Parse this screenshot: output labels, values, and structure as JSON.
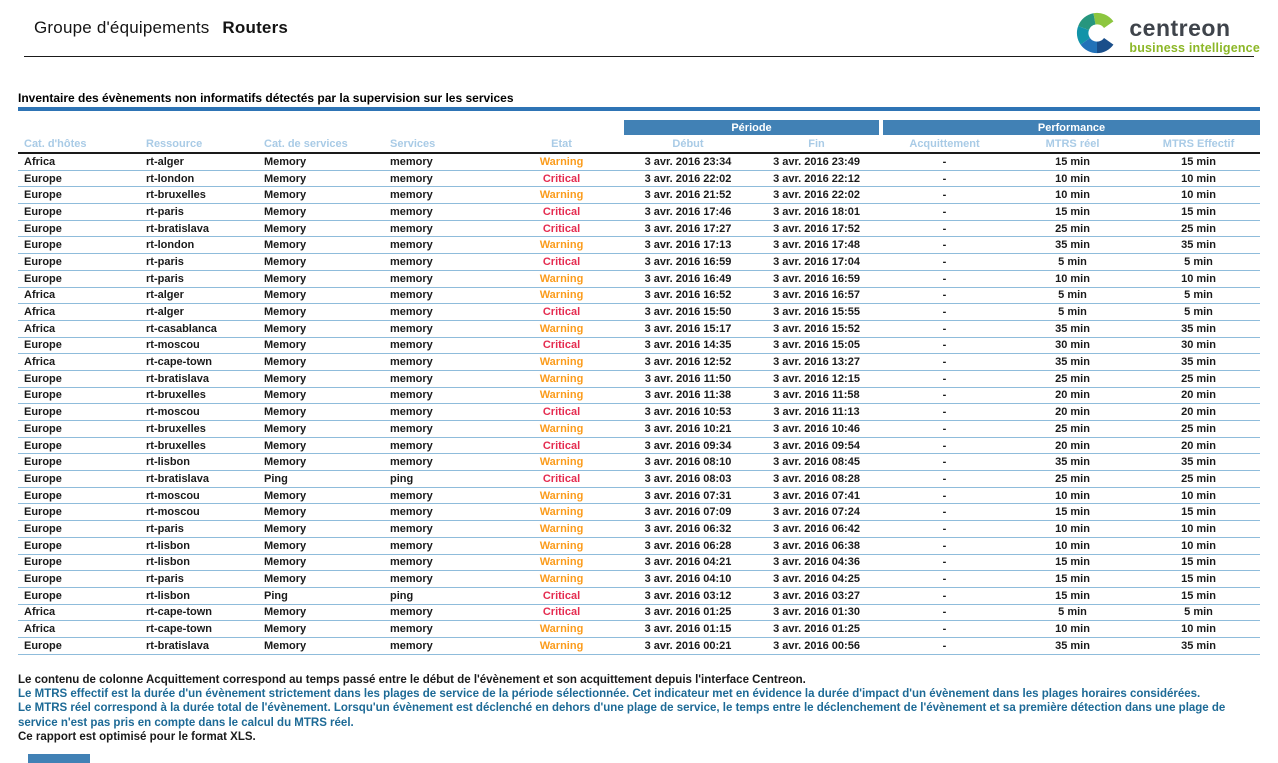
{
  "header": {
    "group_label": "Groupe d'équipements",
    "group_value": "Routers"
  },
  "logo": {
    "brand": "centreon",
    "tagline": "business intelligence"
  },
  "report": {
    "title": "Inventaire des évènements non informatifs détectés par la supervision sur les services"
  },
  "table": {
    "groups": [
      {
        "label": "Période"
      },
      {
        "label": "Performance"
      }
    ],
    "columns": [
      {
        "key": "host_cat",
        "label": "Cat. d'hôtes",
        "align": "left"
      },
      {
        "key": "resource",
        "label": "Ressource",
        "align": "left"
      },
      {
        "key": "service_cat",
        "label": "Cat. de services",
        "align": "left"
      },
      {
        "key": "service",
        "label": "Services",
        "align": "left"
      },
      {
        "key": "state",
        "label": "Etat",
        "align": "center"
      },
      {
        "key": "start",
        "label": "Début",
        "align": "center"
      },
      {
        "key": "end",
        "label": "Fin",
        "align": "center"
      },
      {
        "key": "ack",
        "label": "Acquittement",
        "align": "center"
      },
      {
        "key": "mtrs_real",
        "label": "MTRS réel",
        "align": "center"
      },
      {
        "key": "mtrs_eff",
        "label": "MTRS Effectif",
        "align": "center"
      }
    ],
    "rows": [
      {
        "host_cat": "Africa",
        "resource": "rt-alger",
        "service_cat": "Memory",
        "service": "memory",
        "state": "Warning",
        "start": "3 avr. 2016 23:34",
        "end": "3 avr. 2016 23:49",
        "ack": "-",
        "mtrs_real": "15 min",
        "mtrs_eff": "15 min"
      },
      {
        "host_cat": "Europe",
        "resource": "rt-london",
        "service_cat": "Memory",
        "service": "memory",
        "state": "Critical",
        "start": "3 avr. 2016 22:02",
        "end": "3 avr. 2016 22:12",
        "ack": "-",
        "mtrs_real": "10 min",
        "mtrs_eff": "10 min"
      },
      {
        "host_cat": "Europe",
        "resource": "rt-bruxelles",
        "service_cat": "Memory",
        "service": "memory",
        "state": "Warning",
        "start": "3 avr. 2016 21:52",
        "end": "3 avr. 2016 22:02",
        "ack": "-",
        "mtrs_real": "10 min",
        "mtrs_eff": "10 min"
      },
      {
        "host_cat": "Europe",
        "resource": "rt-paris",
        "service_cat": "Memory",
        "service": "memory",
        "state": "Critical",
        "start": "3 avr. 2016 17:46",
        "end": "3 avr. 2016 18:01",
        "ack": "-",
        "mtrs_real": "15 min",
        "mtrs_eff": "15 min"
      },
      {
        "host_cat": "Europe",
        "resource": "rt-bratislava",
        "service_cat": "Memory",
        "service": "memory",
        "state": "Critical",
        "start": "3 avr. 2016 17:27",
        "end": "3 avr. 2016 17:52",
        "ack": "-",
        "mtrs_real": "25 min",
        "mtrs_eff": "25 min"
      },
      {
        "host_cat": "Europe",
        "resource": "rt-london",
        "service_cat": "Memory",
        "service": "memory",
        "state": "Warning",
        "start": "3 avr. 2016 17:13",
        "end": "3 avr. 2016 17:48",
        "ack": "-",
        "mtrs_real": "35 min",
        "mtrs_eff": "35 min"
      },
      {
        "host_cat": "Europe",
        "resource": "rt-paris",
        "service_cat": "Memory",
        "service": "memory",
        "state": "Critical",
        "start": "3 avr. 2016 16:59",
        "end": "3 avr. 2016 17:04",
        "ack": "-",
        "mtrs_real": "5 min",
        "mtrs_eff": "5 min"
      },
      {
        "host_cat": "Europe",
        "resource": "rt-paris",
        "service_cat": "Memory",
        "service": "memory",
        "state": "Warning",
        "start": "3 avr. 2016 16:49",
        "end": "3 avr. 2016 16:59",
        "ack": "-",
        "mtrs_real": "10 min",
        "mtrs_eff": "10 min"
      },
      {
        "host_cat": "Africa",
        "resource": "rt-alger",
        "service_cat": "Memory",
        "service": "memory",
        "state": "Warning",
        "start": "3 avr. 2016 16:52",
        "end": "3 avr. 2016 16:57",
        "ack": "-",
        "mtrs_real": "5 min",
        "mtrs_eff": "5 min"
      },
      {
        "host_cat": "Africa",
        "resource": "rt-alger",
        "service_cat": "Memory",
        "service": "memory",
        "state": "Critical",
        "start": "3 avr. 2016 15:50",
        "end": "3 avr. 2016 15:55",
        "ack": "-",
        "mtrs_real": "5 min",
        "mtrs_eff": "5 min"
      },
      {
        "host_cat": "Africa",
        "resource": "rt-casablanca",
        "service_cat": "Memory",
        "service": "memory",
        "state": "Warning",
        "start": "3 avr. 2016 15:17",
        "end": "3 avr. 2016 15:52",
        "ack": "-",
        "mtrs_real": "35 min",
        "mtrs_eff": "35 min"
      },
      {
        "host_cat": "Europe",
        "resource": "rt-moscou",
        "service_cat": "Memory",
        "service": "memory",
        "state": "Critical",
        "start": "3 avr. 2016 14:35",
        "end": "3 avr. 2016 15:05",
        "ack": "-",
        "mtrs_real": "30 min",
        "mtrs_eff": "30 min"
      },
      {
        "host_cat": "Africa",
        "resource": "rt-cape-town",
        "service_cat": "Memory",
        "service": "memory",
        "state": "Warning",
        "start": "3 avr. 2016 12:52",
        "end": "3 avr. 2016 13:27",
        "ack": "-",
        "mtrs_real": "35 min",
        "mtrs_eff": "35 min"
      },
      {
        "host_cat": "Europe",
        "resource": "rt-bratislava",
        "service_cat": "Memory",
        "service": "memory",
        "state": "Warning",
        "start": "3 avr. 2016 11:50",
        "end": "3 avr. 2016 12:15",
        "ack": "-",
        "mtrs_real": "25 min",
        "mtrs_eff": "25 min"
      },
      {
        "host_cat": "Europe",
        "resource": "rt-bruxelles",
        "service_cat": "Memory",
        "service": "memory",
        "state": "Warning",
        "start": "3 avr. 2016 11:38",
        "end": "3 avr. 2016 11:58",
        "ack": "-",
        "mtrs_real": "20 min",
        "mtrs_eff": "20 min"
      },
      {
        "host_cat": "Europe",
        "resource": "rt-moscou",
        "service_cat": "Memory",
        "service": "memory",
        "state": "Critical",
        "start": "3 avr. 2016 10:53",
        "end": "3 avr. 2016 11:13",
        "ack": "-",
        "mtrs_real": "20 min",
        "mtrs_eff": "20 min"
      },
      {
        "host_cat": "Europe",
        "resource": "rt-bruxelles",
        "service_cat": "Memory",
        "service": "memory",
        "state": "Warning",
        "start": "3 avr. 2016 10:21",
        "end": "3 avr. 2016 10:46",
        "ack": "-",
        "mtrs_real": "25 min",
        "mtrs_eff": "25 min"
      },
      {
        "host_cat": "Europe",
        "resource": "rt-bruxelles",
        "service_cat": "Memory",
        "service": "memory",
        "state": "Critical",
        "start": "3 avr. 2016 09:34",
        "end": "3 avr. 2016 09:54",
        "ack": "-",
        "mtrs_real": "20 min",
        "mtrs_eff": "20 min"
      },
      {
        "host_cat": "Europe",
        "resource": "rt-lisbon",
        "service_cat": "Memory",
        "service": "memory",
        "state": "Warning",
        "start": "3 avr. 2016 08:10",
        "end": "3 avr. 2016 08:45",
        "ack": "-",
        "mtrs_real": "35 min",
        "mtrs_eff": "35 min"
      },
      {
        "host_cat": "Europe",
        "resource": "rt-bratislava",
        "service_cat": "Ping",
        "service": "ping",
        "state": "Critical",
        "start": "3 avr. 2016 08:03",
        "end": "3 avr. 2016 08:28",
        "ack": "-",
        "mtrs_real": "25 min",
        "mtrs_eff": "25 min"
      },
      {
        "host_cat": "Europe",
        "resource": "rt-moscou",
        "service_cat": "Memory",
        "service": "memory",
        "state": "Warning",
        "start": "3 avr. 2016 07:31",
        "end": "3 avr. 2016 07:41",
        "ack": "-",
        "mtrs_real": "10 min",
        "mtrs_eff": "10 min"
      },
      {
        "host_cat": "Europe",
        "resource": "rt-moscou",
        "service_cat": "Memory",
        "service": "memory",
        "state": "Warning",
        "start": "3 avr. 2016 07:09",
        "end": "3 avr. 2016 07:24",
        "ack": "-",
        "mtrs_real": "15 min",
        "mtrs_eff": "15 min"
      },
      {
        "host_cat": "Europe",
        "resource": "rt-paris",
        "service_cat": "Memory",
        "service": "memory",
        "state": "Warning",
        "start": "3 avr. 2016 06:32",
        "end": "3 avr. 2016 06:42",
        "ack": "-",
        "mtrs_real": "10 min",
        "mtrs_eff": "10 min"
      },
      {
        "host_cat": "Europe",
        "resource": "rt-lisbon",
        "service_cat": "Memory",
        "service": "memory",
        "state": "Warning",
        "start": "3 avr. 2016 06:28",
        "end": "3 avr. 2016 06:38",
        "ack": "-",
        "mtrs_real": "10 min",
        "mtrs_eff": "10 min"
      },
      {
        "host_cat": "Europe",
        "resource": "rt-lisbon",
        "service_cat": "Memory",
        "service": "memory",
        "state": "Warning",
        "start": "3 avr. 2016 04:21",
        "end": "3 avr. 2016 04:36",
        "ack": "-",
        "mtrs_real": "15 min",
        "mtrs_eff": "15 min"
      },
      {
        "host_cat": "Europe",
        "resource": "rt-paris",
        "service_cat": "Memory",
        "service": "memory",
        "state": "Warning",
        "start": "3 avr. 2016 04:10",
        "end": "3 avr. 2016 04:25",
        "ack": "-",
        "mtrs_real": "15 min",
        "mtrs_eff": "15 min"
      },
      {
        "host_cat": "Europe",
        "resource": "rt-lisbon",
        "service_cat": "Ping",
        "service": "ping",
        "state": "Critical",
        "start": "3 avr. 2016 03:12",
        "end": "3 avr. 2016 03:27",
        "ack": "-",
        "mtrs_real": "15 min",
        "mtrs_eff": "15 min"
      },
      {
        "host_cat": "Africa",
        "resource": "rt-cape-town",
        "service_cat": "Memory",
        "service": "memory",
        "state": "Critical",
        "start": "3 avr. 2016 01:25",
        "end": "3 avr. 2016 01:30",
        "ack": "-",
        "mtrs_real": "5 min",
        "mtrs_eff": "5 min"
      },
      {
        "host_cat": "Africa",
        "resource": "rt-cape-town",
        "service_cat": "Memory",
        "service": "memory",
        "state": "Warning",
        "start": "3 avr. 2016 01:15",
        "end": "3 avr. 2016 01:25",
        "ack": "-",
        "mtrs_real": "10 min",
        "mtrs_eff": "10 min"
      },
      {
        "host_cat": "Europe",
        "resource": "rt-bratislava",
        "service_cat": "Memory",
        "service": "memory",
        "state": "Warning",
        "start": "3 avr. 2016 00:21",
        "end": "3 avr. 2016 00:56",
        "ack": "-",
        "mtrs_real": "35 min",
        "mtrs_eff": "35 min"
      }
    ]
  },
  "footer": {
    "lines": [
      "Le contenu de colonne Acquittement correspond au temps passé entre le début de l'évènement et son acquittement depuis l'interface Centreon.",
      "Le MTRS effectif est la durée d'un évènement strictement dans les plages de service de la période sélectionnée. Cet indicateur met en évidence la durée d'impact d'un évènement dans les plages horaires considérées.",
      "Le MTRS réel correspond à la durée total de l'évènement. Lorsqu'un évènement est déclenché en dehors d'une plage de service, le temps entre le déclenchement de l'évènement et sa première détection dans une plage de",
      "service n'est pas pris en compte dans le calcul du MTRS réel.",
      "Ce rapport est optimisé pour le format XLS."
    ]
  },
  "colors": {
    "header_bar": "#4181B5",
    "column_header_text": "#A9CBE6",
    "title_bar": "#2E74B5",
    "row_divider": "#8FBCDB",
    "warning": "#FB9C1C",
    "critical": "#E52C50",
    "footer_blue": "#1D6A96",
    "logo_green": "#8CB727"
  }
}
